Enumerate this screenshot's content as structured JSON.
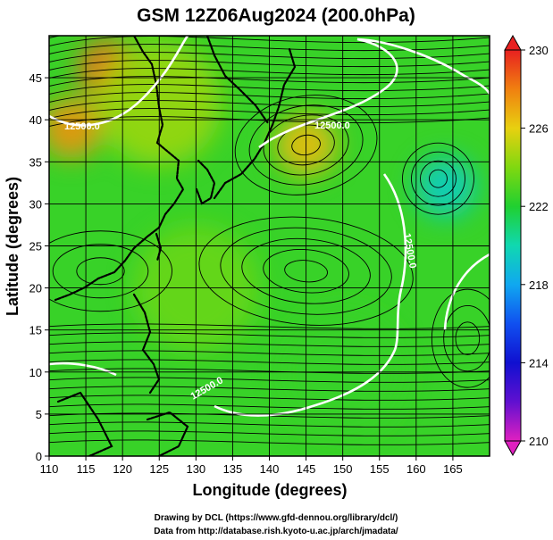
{
  "chart_data": {
    "type": "heatmap",
    "title": "GSM 12Z06Aug2024 (200.0hPa)",
    "xlabel": "Longitude (degrees)",
    "ylabel": "Latitude  (degrees)",
    "xlim": [
      110,
      170
    ],
    "ylim": [
      0,
      50
    ],
    "x_ticks": [
      "110",
      "115",
      "120",
      "125",
      "130",
      "135",
      "140",
      "145",
      "150",
      "155",
      "160",
      "165"
    ],
    "y_ticks": [
      "0",
      "5",
      "10",
      "15",
      "20",
      "25",
      "30",
      "35",
      "40",
      "45"
    ],
    "grid": true,
    "colorbar": {
      "min": 210,
      "max": 230,
      "ticks": [
        "210",
        "214",
        "218",
        "222",
        "226",
        "230"
      ]
    },
    "contours": [
      {
        "label": "12500.0"
      },
      {
        "label": "12500.0"
      },
      {
        "label": "12500.0"
      },
      {
        "label": "12500.0"
      }
    ],
    "field_features": [
      {
        "lon": 118,
        "lat": 46,
        "value": 228.5
      },
      {
        "lon": 113,
        "lat": 39,
        "value": 227.5
      },
      {
        "lon": 145,
        "lat": 37,
        "value": 226.5
      },
      {
        "lon": 164,
        "lat": 32,
        "value": 219.5
      },
      {
        "lon": 125,
        "lat": 42,
        "value": 224.5
      },
      {
        "lon": 130,
        "lat": 20,
        "value": 223.5
      },
      {
        "lon": 150,
        "lat": 10,
        "value": 222.5
      }
    ],
    "background_value": 222.5
  },
  "credits": {
    "line1": "Drawing by DCL (https://www.gfd-dennou.org/library/dcl/)",
    "line2": "Data from http://database.rish.kyoto-u.ac.jp/arch/jmadata/"
  }
}
